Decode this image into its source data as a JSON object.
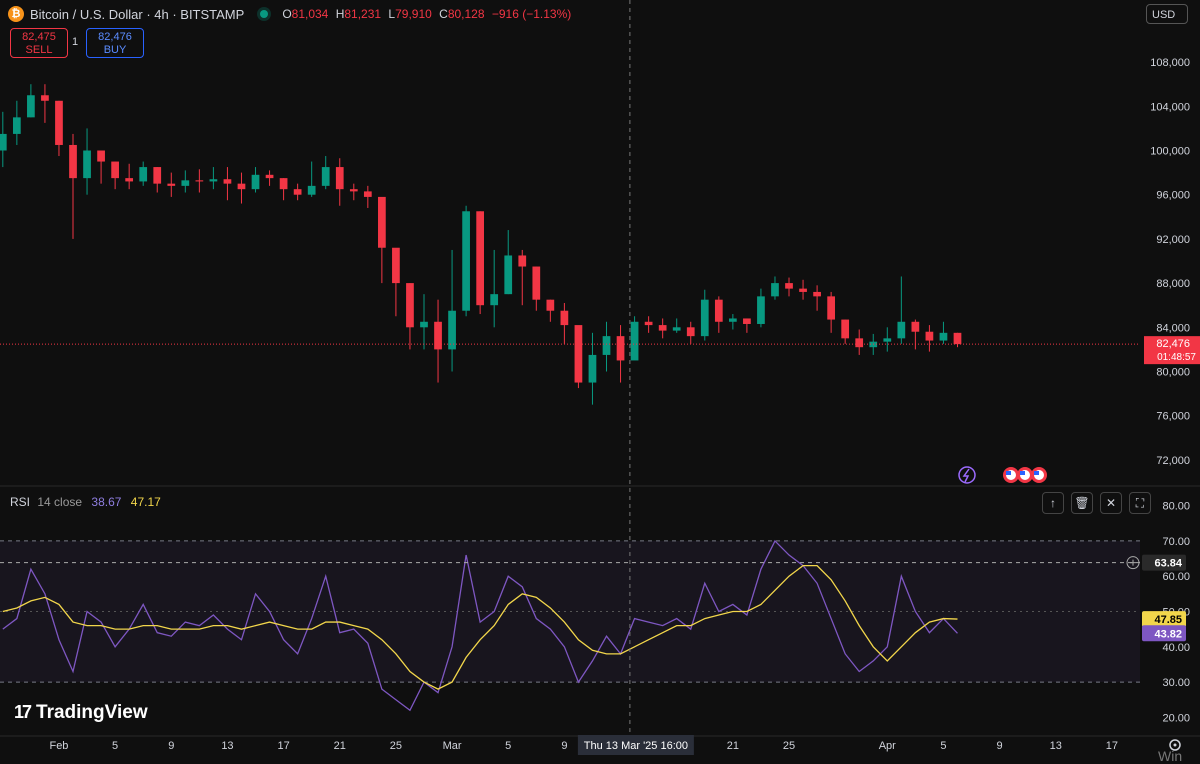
{
  "header": {
    "coin_glyph": "₿",
    "title": "Bitcoin / U.S. Dollar · 4h · BITSTAMP",
    "ohlc": [
      {
        "key": "O",
        "value": "81,034"
      },
      {
        "key": "H",
        "value": "81,231"
      },
      {
        "key": "L",
        "value": "79,910"
      },
      {
        "key": "C",
        "value": "80,128"
      }
    ],
    "change": "−916 (−1.13%)"
  },
  "trade": {
    "sell_price": "82,475",
    "sell_label": "SELL",
    "spread": "1",
    "buy_price": "82,476",
    "buy_label": "BUY"
  },
  "currency": "USD",
  "price_badge": {
    "price": "82,476",
    "countdown": "01:48:57"
  },
  "rsi_legend": {
    "title": "RSI",
    "params": "14 close",
    "rsi_value": "38.67",
    "ma_value": "47.17"
  },
  "rsi_badges": {
    "crosshair": "63.84",
    "ma": "47.85",
    "rsi": "43.82"
  },
  "crosshair_label": "Thu 13 Mar '25   16:00",
  "brand": {
    "name": "TradingView",
    "mark": "17"
  },
  "watermark": "Win",
  "pane_buttons": [
    "↑",
    "🗑",
    "✕",
    "⛶"
  ],
  "colors": {
    "up": "#089981",
    "down": "#f23645",
    "rsi": "#7e57c2",
    "rsi_ma": "#f2d64b",
    "background": "#0f0f0f"
  },
  "chart_data": [
    {
      "type": "candlestick",
      "title": "Bitcoin / U.S. Dollar · 4h · BITSTAMP",
      "ylim": [
        70000,
        110000
      ],
      "y_ticks": [
        72000,
        76000,
        80000,
        84000,
        88000,
        92000,
        96000,
        100000,
        104000,
        108000
      ],
      "x_ticks": [
        "Feb",
        "5",
        "9",
        "13",
        "17",
        "21",
        "25",
        "Mar",
        "5",
        "9",
        "21",
        "25",
        "Apr",
        "5",
        "9",
        "13",
        "17"
      ],
      "x_label_dates": [
        "2025-02-01",
        "2025-02-05",
        "2025-02-09",
        "2025-02-13",
        "2025-02-17",
        "2025-02-21",
        "2025-02-25",
        "2025-03-01",
        "2025-03-05",
        "2025-03-09",
        "2025-03-21",
        "2025-03-25",
        "2025-04-01",
        "2025-04-05",
        "2025-04-09",
        "2025-04-13",
        "2025-04-17"
      ],
      "grid": false,
      "last_price": 82476,
      "series": [
        {
          "name": "Close",
          "dates": [
            "2025-01-28",
            "2025-01-29",
            "2025-01-30",
            "2025-01-31",
            "2025-02-01",
            "2025-02-02",
            "2025-02-03",
            "2025-02-04",
            "2025-02-05",
            "2025-02-06",
            "2025-02-07",
            "2025-02-08",
            "2025-02-09",
            "2025-02-10",
            "2025-02-11",
            "2025-02-12",
            "2025-02-13",
            "2025-02-14",
            "2025-02-15",
            "2025-02-16",
            "2025-02-17",
            "2025-02-18",
            "2025-02-19",
            "2025-02-20",
            "2025-02-21",
            "2025-02-22",
            "2025-02-23",
            "2025-02-24",
            "2025-02-25",
            "2025-02-26",
            "2025-02-27",
            "2025-02-28",
            "2025-03-01",
            "2025-03-02",
            "2025-03-03",
            "2025-03-04",
            "2025-03-05",
            "2025-03-06",
            "2025-03-07",
            "2025-03-08",
            "2025-03-09",
            "2025-03-10",
            "2025-03-11",
            "2025-03-12",
            "2025-03-13",
            "2025-03-14",
            "2025-03-15",
            "2025-03-16",
            "2025-03-17",
            "2025-03-18",
            "2025-03-19",
            "2025-03-20",
            "2025-03-21",
            "2025-03-22",
            "2025-03-23",
            "2025-03-24",
            "2025-03-25",
            "2025-03-26",
            "2025-03-27",
            "2025-03-28",
            "2025-03-29",
            "2025-03-30",
            "2025-03-31",
            "2025-04-01",
            "2025-04-02",
            "2025-04-03",
            "2025-04-04",
            "2025-04-05",
            "2025-04-06"
          ],
          "values": [
            101500,
            103000,
            105000,
            104500,
            100500,
            97500,
            100000,
            99000,
            97500,
            97200,
            98500,
            97000,
            96800,
            97300,
            97200,
            97400,
            97000,
            96500,
            97800,
            97500,
            96500,
            96000,
            96800,
            98500,
            96500,
            96300,
            95800,
            91200,
            88000,
            84000,
            84500,
            82000,
            85500,
            94500,
            86000,
            87000,
            90500,
            89500,
            86500,
            85500,
            84200,
            79000,
            81500,
            83200,
            81000,
            84500,
            84200,
            83700,
            84000,
            83200,
            86500,
            84500,
            84800,
            84300,
            86800,
            88000,
            87500,
            87200,
            86800,
            84700,
            83000,
            82200,
            82700,
            83000,
            84500,
            83600,
            82800,
            83500,
            82476
          ]
        },
        {
          "name": "High",
          "values": [
            103500,
            104500,
            106000,
            106000,
            104500,
            101500,
            102000,
            100000,
            99000,
            98800,
            99000,
            98500,
            98000,
            98200,
            98300,
            98500,
            98500,
            98000,
            98500,
            98200,
            97500,
            97000,
            99000,
            99500,
            99300,
            97000,
            96800,
            94800,
            91000,
            88000,
            87000,
            86500,
            91000,
            95000,
            94500,
            91000,
            92800,
            91000,
            89500,
            86500,
            86200,
            84000,
            83500,
            84500,
            84200,
            85000,
            85000,
            84800,
            84800,
            84500,
            87400,
            86800,
            85200,
            84800,
            87500,
            88600,
            88500,
            88300,
            87800,
            87200,
            84700,
            83800,
            83400,
            84000,
            88600,
            84700,
            84200,
            84500,
            83500
          ]
        },
        {
          "name": "Low",
          "values": [
            98500,
            100500,
            103000,
            102500,
            99500,
            92000,
            96000,
            97000,
            96500,
            96500,
            96800,
            96200,
            95800,
            96200,
            96200,
            96500,
            95500,
            95200,
            96200,
            96800,
            95500,
            95500,
            95800,
            96500,
            95000,
            95500,
            94800,
            88000,
            85000,
            82000,
            82000,
            79000,
            80000,
            85000,
            85200,
            84000,
            87000,
            86000,
            85500,
            84500,
            82500,
            78500,
            77000,
            80000,
            79000,
            82000,
            83500,
            83000,
            83500,
            82500,
            82800,
            83500,
            83800,
            83500,
            84000,
            86500,
            86800,
            86500,
            85500,
            83500,
            82500,
            81500,
            81500,
            81800,
            82500,
            82000,
            81800,
            82500,
            82200
          ]
        }
      ]
    },
    {
      "type": "line",
      "title": "RSI",
      "ylim": [
        15,
        85
      ],
      "y_ticks": [
        20,
        30,
        40,
        50,
        60,
        70,
        80
      ],
      "bands": [
        30,
        50,
        70
      ],
      "series": [
        {
          "name": "RSI",
          "values": [
            45,
            48,
            62,
            55,
            42,
            33,
            50,
            47,
            40,
            45,
            52,
            44,
            43,
            47,
            46,
            49,
            45,
            42,
            55,
            50,
            42,
            38,
            48,
            60,
            44,
            45,
            41,
            28,
            25,
            22,
            30,
            27,
            40,
            66,
            47,
            50,
            60,
            57,
            48,
            45,
            40,
            30,
            36,
            43,
            38,
            48,
            47,
            46,
            48,
            45,
            58,
            50,
            52,
            49,
            62,
            70,
            66,
            63,
            58,
            48,
            38,
            33,
            36,
            40,
            60,
            50,
            44,
            48,
            43.82
          ]
        },
        {
          "name": "RSI-based MA",
          "values": [
            50,
            51,
            53,
            54,
            52,
            47,
            46,
            46,
            45,
            45,
            46,
            46,
            45,
            45,
            45,
            46,
            46,
            45,
            46,
            47,
            46,
            45,
            45,
            47,
            47,
            46,
            45,
            42,
            38,
            33,
            30,
            28,
            30,
            37,
            42,
            46,
            52,
            55,
            54,
            51,
            47,
            42,
            39,
            38,
            38,
            40,
            42,
            44,
            46,
            46,
            48,
            49,
            50,
            50,
            52,
            56,
            60,
            63,
            63,
            59,
            53,
            46,
            40,
            36,
            40,
            44,
            47,
            48,
            47.85
          ]
        }
      ]
    }
  ]
}
